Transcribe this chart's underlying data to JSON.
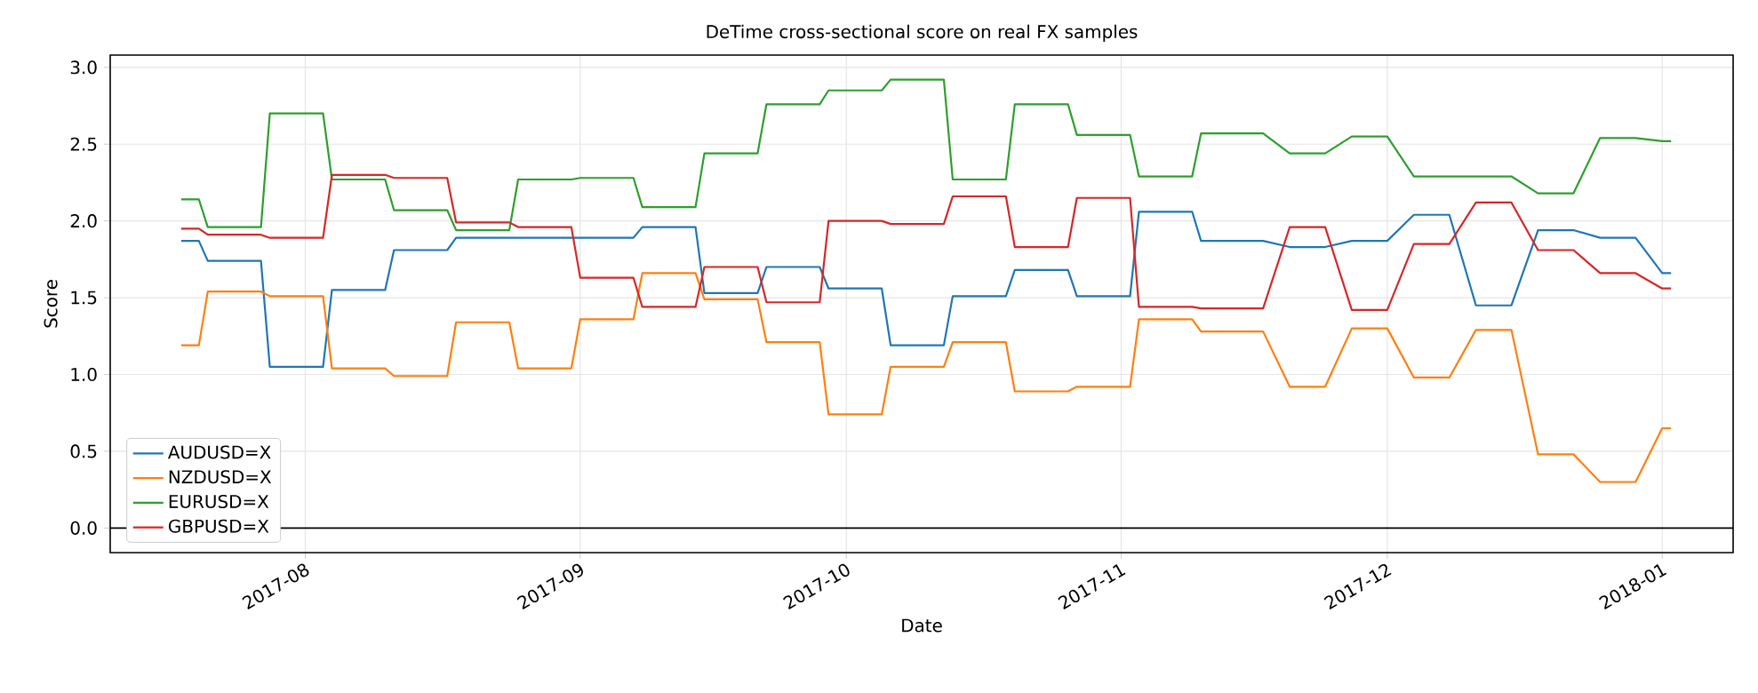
{
  "chart_data": {
    "type": "line",
    "title": "DeTime cross-sectional score on real FX samples",
    "xlabel": "Date",
    "ylabel": "Score",
    "x": [
      "2017-07-18",
      "2017-07-20",
      "2017-07-21",
      "2017-07-27",
      "2017-07-28",
      "2017-08-03",
      "2017-08-04",
      "2017-08-10",
      "2017-08-11",
      "2017-08-17",
      "2017-08-18",
      "2017-08-24",
      "2017-08-25",
      "2017-08-31",
      "2017-09-01",
      "2017-09-07",
      "2017-09-08",
      "2017-09-14",
      "2017-09-15",
      "2017-09-21",
      "2017-09-22",
      "2017-09-28",
      "2017-09-29",
      "2017-10-05",
      "2017-10-06",
      "2017-10-12",
      "2017-10-13",
      "2017-10-19",
      "2017-10-20",
      "2017-10-26",
      "2017-10-27",
      "2017-11-02",
      "2017-11-03",
      "2017-11-09",
      "2017-11-10",
      "2017-11-17",
      "2017-11-20",
      "2017-11-24",
      "2017-11-27",
      "2017-12-01",
      "2017-12-04",
      "2017-12-08",
      "2017-12-11",
      "2017-12-15",
      "2017-12-18",
      "2017-12-22",
      "2017-12-25",
      "2017-12-29",
      "2018-01-01",
      "2018-01-02"
    ],
    "series": [
      {
        "name": "AUDUSD=X",
        "color": "#1f77b4",
        "values": [
          1.87,
          1.87,
          1.74,
          1.74,
          1.05,
          1.05,
          1.55,
          1.55,
          1.81,
          1.81,
          1.89,
          1.89,
          1.89,
          1.89,
          1.89,
          1.89,
          1.96,
          1.96,
          1.53,
          1.53,
          1.7,
          1.7,
          1.56,
          1.56,
          1.19,
          1.19,
          1.51,
          1.51,
          1.68,
          1.68,
          1.51,
          1.51,
          2.06,
          2.06,
          1.87,
          1.87,
          1.83,
          1.83,
          1.87,
          1.87,
          2.04,
          2.04,
          1.45,
          1.45,
          1.94,
          1.94,
          1.89,
          1.89,
          1.66,
          1.66
        ]
      },
      {
        "name": "NZDUSD=X",
        "color": "#ff7f0e",
        "values": [
          1.19,
          1.19,
          1.54,
          1.54,
          1.51,
          1.51,
          1.04,
          1.04,
          0.99,
          0.99,
          1.34,
          1.34,
          1.04,
          1.04,
          1.36,
          1.36,
          1.66,
          1.66,
          1.49,
          1.49,
          1.21,
          1.21,
          0.74,
          0.74,
          1.05,
          1.05,
          1.21,
          1.21,
          0.89,
          0.89,
          0.92,
          0.92,
          1.36,
          1.36,
          1.28,
          1.28,
          0.92,
          0.92,
          1.3,
          1.3,
          0.98,
          0.98,
          1.29,
          1.29,
          0.48,
          0.48,
          0.3,
          0.3,
          0.65,
          0.65
        ]
      },
      {
        "name": "EURUSD=X",
        "color": "#2ca02c",
        "values": [
          2.14,
          2.14,
          1.96,
          1.96,
          2.7,
          2.7,
          2.27,
          2.27,
          2.07,
          2.07,
          1.94,
          1.94,
          2.27,
          2.27,
          2.28,
          2.28,
          2.09,
          2.09,
          2.44,
          2.44,
          2.76,
          2.76,
          2.85,
          2.85,
          2.92,
          2.92,
          2.27,
          2.27,
          2.76,
          2.76,
          2.56,
          2.56,
          2.29,
          2.29,
          2.57,
          2.57,
          2.44,
          2.44,
          2.55,
          2.55,
          2.29,
          2.29,
          2.29,
          2.29,
          2.18,
          2.18,
          2.54,
          2.54,
          2.52,
          2.52
        ]
      },
      {
        "name": "GBPUSD=X",
        "color": "#d62728",
        "values": [
          1.95,
          1.95,
          1.91,
          1.91,
          1.89,
          1.89,
          2.3,
          2.3,
          2.28,
          2.28,
          1.99,
          1.99,
          1.96,
          1.96,
          1.63,
          1.63,
          1.44,
          1.44,
          1.7,
          1.7,
          1.47,
          1.47,
          2.0,
          2.0,
          1.98,
          1.98,
          2.16,
          2.16,
          1.83,
          1.83,
          2.15,
          2.15,
          1.44,
          1.44,
          1.43,
          1.43,
          1.96,
          1.96,
          1.42,
          1.42,
          1.85,
          1.85,
          2.12,
          2.12,
          1.81,
          1.81,
          1.66,
          1.66,
          1.56,
          1.56
        ]
      }
    ],
    "xlim": [
      "2017-07-10",
      "2018-01-09"
    ],
    "xticks": [
      "2017-08",
      "2017-09",
      "2017-10",
      "2017-11",
      "2017-12",
      "2018-01"
    ],
    "ylim": [
      -0.16,
      3.08
    ],
    "yticks": [
      {
        "value": 0,
        "label": "0.0"
      },
      {
        "value": 0.5,
        "label": "0.5"
      },
      {
        "value": 1,
        "label": "1.0"
      },
      {
        "value": 1.5,
        "label": "1.5"
      },
      {
        "value": 2,
        "label": "2.0"
      },
      {
        "value": 2.5,
        "label": "2.5"
      },
      {
        "value": 3,
        "label": "3.0"
      }
    ],
    "ref_lines": [
      {
        "axis": "y",
        "value": 0,
        "color": "#000000"
      }
    ],
    "grid": true,
    "legend": "bottom left",
    "marker": "none",
    "line_style": "solid"
  }
}
